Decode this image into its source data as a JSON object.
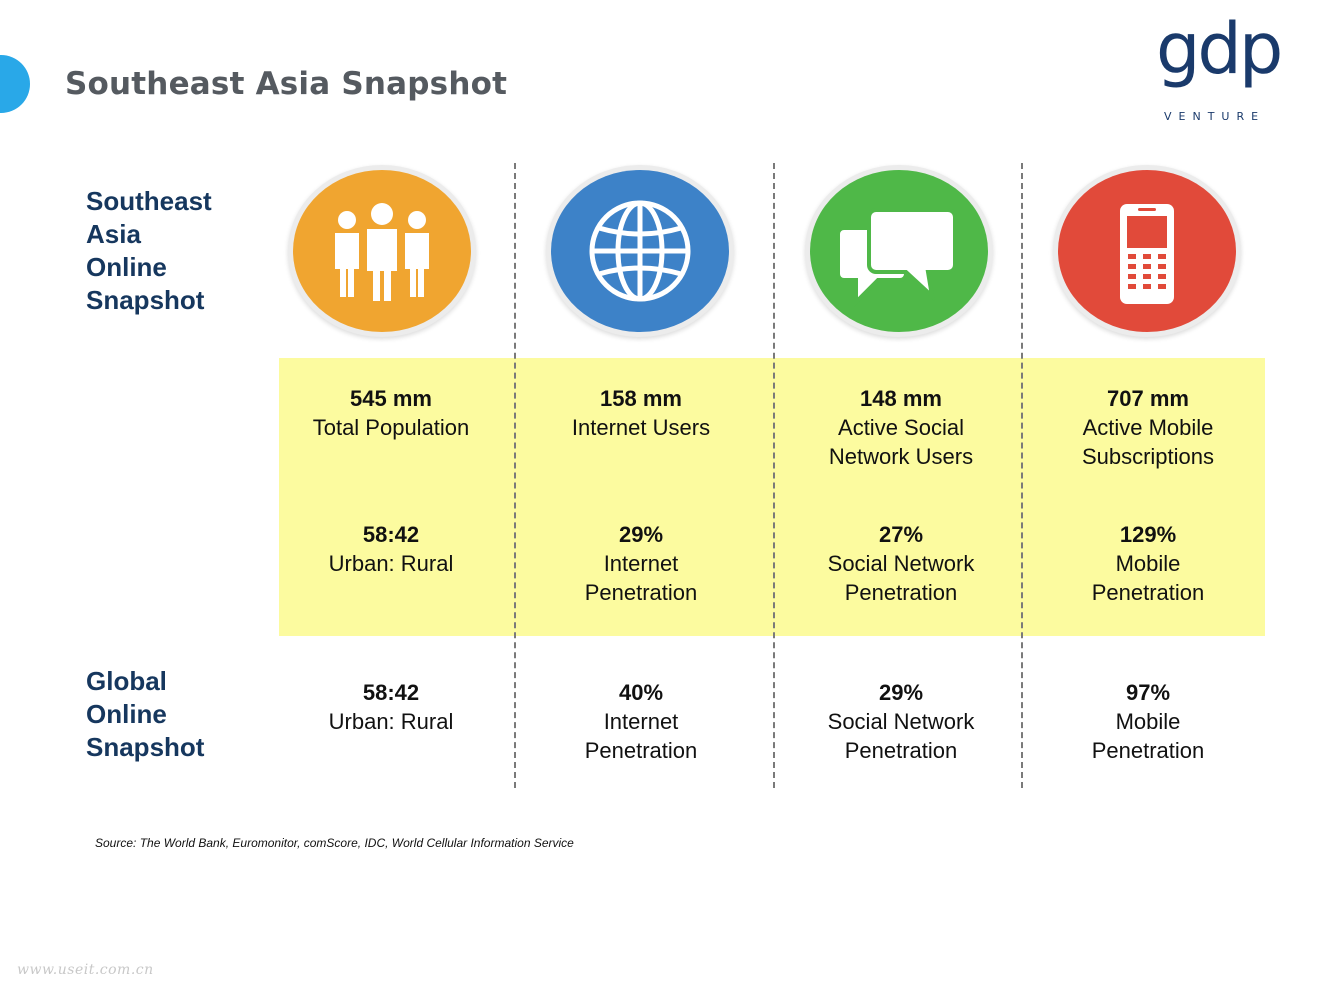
{
  "header": {
    "title": "Southeast Asia Snapshot",
    "logo_word": "gdp",
    "logo_sub": "VENTURE"
  },
  "labels": {
    "sea": [
      "Southeast",
      "Asia",
      "Online",
      "Snapshot"
    ],
    "global": [
      "Global",
      "Online",
      "Snapshot"
    ]
  },
  "colors": {
    "accent": "#29a8e8",
    "band": "#fcfb9f",
    "label": "#16375e",
    "people_circle": "#f0a530",
    "globe_circle": "#3d82c8",
    "chat_circle": "#4fb848",
    "phone_circle": "#e14a3a"
  },
  "icons": [
    "people-icon",
    "globe-icon",
    "chat-bubbles-icon",
    "mobile-phone-icon"
  ],
  "columns": [
    {
      "sea_primary_value": "545 mm",
      "sea_primary_desc": [
        "Total Population"
      ],
      "sea_secondary_value": "58:42",
      "sea_secondary_desc": [
        "Urban: Rural"
      ],
      "global_value": "58:42",
      "global_desc": [
        "Urban: Rural"
      ]
    },
    {
      "sea_primary_value": "158 mm",
      "sea_primary_desc": [
        "Internet Users"
      ],
      "sea_secondary_value": "29%",
      "sea_secondary_desc": [
        "Internet",
        "Penetration"
      ],
      "global_value": "40%",
      "global_desc": [
        "Internet",
        "Penetration"
      ]
    },
    {
      "sea_primary_value": "148 mm",
      "sea_primary_desc": [
        "Active Social",
        "Network Users"
      ],
      "sea_secondary_value": "27%",
      "sea_secondary_desc": [
        "Social Network",
        "Penetration"
      ],
      "global_value": "29%",
      "global_desc": [
        "Social Network",
        "Penetration"
      ]
    },
    {
      "sea_primary_value": "707 mm",
      "sea_primary_desc": [
        "Active Mobile",
        "Subscriptions"
      ],
      "sea_secondary_value": "129%",
      "sea_secondary_desc": [
        "Mobile",
        "Penetration"
      ],
      "global_value": "97%",
      "global_desc": [
        "Mobile",
        "Penetration"
      ]
    }
  ],
  "source": "Source: The World Bank, Euromonitor, comScore, IDC, World Cellular Information Service",
  "watermark": "www.useit.com.cn"
}
